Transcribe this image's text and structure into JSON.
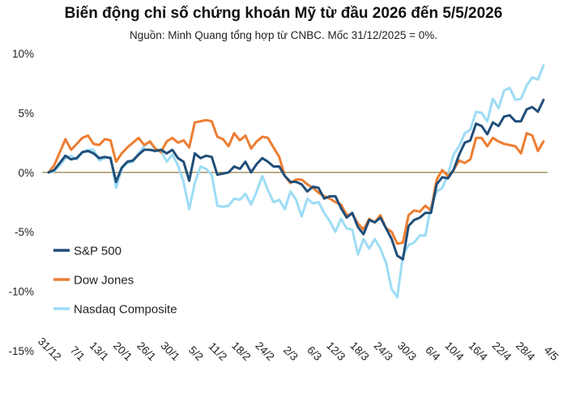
{
  "chart_data": {
    "type": "line",
    "title": "Biến động chỉ số chứng khoán Mỹ từ đầu 2026 đến 5/5/2026",
    "subtitle": "Nguồn: Minh Quang tổng hợp từ CNBC. Mốc 31/12/2025 = 0%.",
    "xlabel": "",
    "ylabel": "",
    "ylim": [
      -15,
      10
    ],
    "y_ticks": [
      10,
      5,
      0,
      -5,
      -10,
      -15
    ],
    "y_tick_labels": [
      "10%",
      "5%",
      "0%",
      "-5%",
      "-10%",
      "-15%"
    ],
    "x_tick_labels": [
      "31/12",
      "7/1",
      "13/1",
      "20/1",
      "26/1",
      "30/1",
      "5/2",
      "11/2",
      "18/2",
      "24/2",
      "2/3",
      "6/3",
      "12/3",
      "18/3",
      "24/3",
      "30/3",
      "6/4",
      "10/4",
      "16/4",
      "22/4",
      "28/4",
      "4/5"
    ],
    "legend_position": "left",
    "series": [
      {
        "name": "S&P 500",
        "color": "#1f4e79",
        "values": [
          0,
          0.2,
          0.8,
          1.4,
          1.1,
          1.2,
          1.7,
          1.8,
          1.6,
          1.2,
          1.3,
          1.2,
          -0.8,
          0.4,
          0.9,
          1.0,
          1.5,
          1.9,
          1.9,
          1.8,
          1.9,
          1.6,
          1.9,
          1.2,
          0.9,
          -0.7,
          1.6,
          1.2,
          1.4,
          1.3,
          -0.2,
          -0.1,
          0.0,
          0.5,
          0.3,
          0.9,
          0.0,
          0.7,
          1.2,
          0.9,
          0.5,
          0.5,
          -0.3,
          -0.8,
          -0.8,
          -1.0,
          -1.6,
          -1.2,
          -1.3,
          -2.2,
          -2.0,
          -2.0,
          -3.0,
          -3.8,
          -3.4,
          -4.6,
          -5.2,
          -4.0,
          -4.2,
          -3.8,
          -4.7,
          -5.6,
          -7.0,
          -7.3,
          -4.5,
          -4.0,
          -3.8,
          -3.4,
          -3.4,
          -1.0,
          -0.4,
          -0.5,
          0.2,
          1.5,
          2.5,
          2.7,
          4.1,
          3.9,
          3.2,
          4.2,
          3.9,
          4.7,
          4.8,
          4.3,
          4.3,
          5.3,
          5.5,
          5.1,
          6.1
        ]
      },
      {
        "name": "Dow Jones",
        "color": "#ed7d31",
        "values": [
          0,
          0.6,
          1.7,
          2.8,
          1.9,
          2.4,
          2.9,
          3.1,
          2.4,
          2.3,
          2.8,
          2.7,
          0.9,
          1.6,
          2.1,
          2.5,
          2.9,
          2.3,
          2.6,
          2.0,
          1.7,
          2.6,
          2.9,
          2.5,
          2.7,
          2.1,
          4.2,
          4.3,
          4.4,
          4.3,
          3.0,
          2.8,
          2.2,
          3.3,
          2.7,
          3.1,
          2.0,
          2.6,
          3.0,
          2.9,
          2.1,
          1.3,
          -0.3,
          -0.9,
          -0.6,
          -0.6,
          -1.0,
          -1.3,
          -1.7,
          -2.0,
          -2.2,
          -2.5,
          -2.7,
          -3.6,
          -3.5,
          -4.3,
          -4.8,
          -3.9,
          -4.2,
          -3.6,
          -4.7,
          -5.0,
          -6.0,
          -5.9,
          -3.6,
          -3.2,
          -3.3,
          -2.8,
          -3.2,
          -0.6,
          0.2,
          -0.3,
          0.2,
          1.0,
          0.8,
          1.1,
          2.9,
          2.9,
          2.2,
          2.9,
          2.6,
          2.4,
          2.3,
          2.2,
          1.6,
          3.3,
          3.1,
          1.8,
          2.6
        ]
      },
      {
        "name": "Nasdaq Composite",
        "color": "#9ddcf5",
        "values": [
          0,
          0.1,
          0.6,
          1.2,
          1.4,
          1.1,
          1.7,
          1.9,
          1.9,
          1.0,
          1.2,
          1.3,
          -1.3,
          0.3,
          0.8,
          0.9,
          1.6,
          2.2,
          2.6,
          1.9,
          1.8,
          0.9,
          1.5,
          0.6,
          -0.8,
          -3.1,
          -0.9,
          0.5,
          0.3,
          -0.2,
          -2.8,
          -2.9,
          -2.8,
          -2.2,
          -2.3,
          -1.8,
          -2.7,
          -1.6,
          -0.3,
          -1.5,
          -2.5,
          -2.3,
          -3.1,
          -1.6,
          -2.3,
          -3.7,
          -2.2,
          -2.6,
          -2.5,
          -3.4,
          -4.1,
          -5.0,
          -3.9,
          -4.7,
          -4.8,
          -6.9,
          -5.6,
          -6.4,
          -5.6,
          -6.4,
          -7.6,
          -9.8,
          -10.5,
          -7.0,
          -6.1,
          -5.9,
          -5.3,
          -5.3,
          -2.8,
          -1.6,
          -1.3,
          -0.2,
          1.5,
          2.2,
          3.3,
          3.6,
          5.1,
          5.0,
          4.3,
          6.2,
          5.4,
          6.9,
          7.1,
          6.1,
          6.2,
          7.3,
          8.0,
          7.8,
          9.0
        ]
      }
    ]
  }
}
